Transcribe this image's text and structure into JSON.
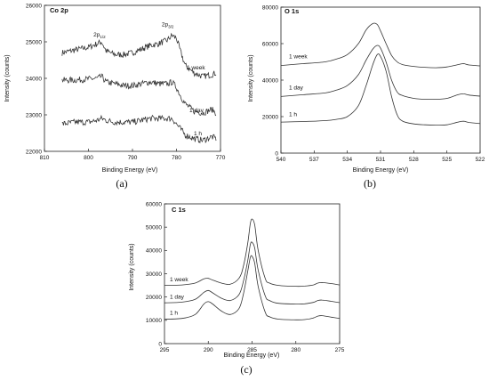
{
  "chart_data": [
    {
      "type": "line",
      "panel": "(a)",
      "title": "Co 2p",
      "xlabel": "Binding Energy (eV)",
      "ylabel": "Intensity (counts)",
      "xlim": [
        810,
        770
      ],
      "ylim": [
        22000,
        26000
      ],
      "xticks": [
        810,
        800,
        790,
        780,
        770
      ],
      "yticks": [
        22000,
        23000,
        24000,
        25000,
        26000
      ],
      "annotations": [
        {
          "text": "2p",
          "sub": "1/2",
          "x": 797.5,
          "y": 25150
        },
        {
          "text": "2p",
          "sub": "3/2",
          "x": 782,
          "y": 25430
        }
      ],
      "x": [
        806,
        803,
        800,
        798,
        797,
        796,
        794,
        792,
        790,
        788,
        786,
        784,
        782,
        781,
        780,
        779,
        778,
        776,
        774,
        772,
        771
      ],
      "series": [
        {
          "name": "1 week",
          "values": [
            24700,
            24780,
            24850,
            24950,
            25000,
            24750,
            24650,
            24650,
            24700,
            24800,
            24900,
            24950,
            25050,
            25180,
            25100,
            24700,
            24350,
            24150,
            24050,
            24100,
            24150
          ]
        },
        {
          "name": "1 day",
          "values": [
            23950,
            23950,
            23980,
            24000,
            24050,
            23900,
            23850,
            23800,
            23800,
            23850,
            23900,
            23850,
            23850,
            23900,
            23750,
            23500,
            23300,
            23100,
            23050,
            23150,
            23050
          ]
        },
        {
          "name": "1 h",
          "values": [
            22750,
            22800,
            22800,
            22850,
            22900,
            22850,
            22800,
            22800,
            22800,
            22850,
            22900,
            22900,
            22900,
            22900,
            22750,
            22600,
            22450,
            22350,
            22300,
            22400,
            22350
          ]
        }
      ]
    },
    {
      "type": "line",
      "panel": "(b)",
      "title": "O 1s",
      "xlabel": "Binding Energy (eV)",
      "ylabel": "Intensity (counts)",
      "xlim": [
        540,
        522
      ],
      "ylim": [
        0,
        80000
      ],
      "xticks": [
        540,
        537,
        534,
        531,
        528,
        525,
        522
      ],
      "yticks": [
        0,
        20000,
        40000,
        60000,
        80000
      ],
      "x": [
        540,
        538,
        536,
        535,
        534,
        533,
        532.3,
        531.7,
        531.3,
        531,
        530.5,
        530,
        529.5,
        529,
        528,
        527,
        526,
        525,
        524,
        523.5,
        523,
        522
      ],
      "series": [
        {
          "name": "1 week",
          "values": [
            48000,
            49000,
            50000,
            51500,
            54000,
            60000,
            67500,
            71000,
            70500,
            67000,
            60000,
            53500,
            50000,
            48500,
            47500,
            47000,
            46800,
            47200,
            48500,
            49000,
            48300,
            47800
          ]
        },
        {
          "name": "1 day",
          "values": [
            31000,
            32000,
            33000,
            34500,
            37000,
            43000,
            51000,
            57000,
            59000,
            57500,
            50000,
            40000,
            33500,
            31500,
            30000,
            29500,
            29500,
            30000,
            32000,
            32500,
            31800,
            31200
          ]
        },
        {
          "name": "1 h",
          "values": [
            17000,
            17300,
            17800,
            18500,
            20000,
            26000,
            37000,
            48500,
            54000,
            53000,
            45000,
            31000,
            21000,
            17500,
            16000,
            15500,
            15300,
            15500,
            17000,
            17500,
            16800,
            16200
          ]
        }
      ]
    },
    {
      "type": "line",
      "panel": "(c)",
      "title": "C 1s",
      "xlabel": "Binding Energy (eV)",
      "ylabel": "Intensity (counts)",
      "xlim": [
        295,
        275
      ],
      "ylim": [
        0,
        60000
      ],
      "xticks": [
        295,
        290,
        285,
        280,
        275
      ],
      "yticks": [
        0,
        10000,
        20000,
        30000,
        40000,
        50000,
        60000
      ],
      "x": [
        295,
        293,
        291.5,
        290.5,
        290,
        289.5,
        288.5,
        287.5,
        286.5,
        286,
        285.5,
        285.2,
        285,
        284.7,
        284.3,
        283.5,
        283,
        282,
        280,
        279,
        278,
        277.5,
        277,
        276,
        275
      ],
      "series": [
        {
          "name": "1 week",
          "values": [
            25000,
            25200,
            26000,
            27800,
            28000,
            27300,
            26000,
            25500,
            28000,
            33000,
            43000,
            51500,
            53500,
            51000,
            40000,
            28000,
            26000,
            25000,
            24600,
            24700,
            25200,
            26000,
            26200,
            25800,
            25200
          ]
        },
        {
          "name": "1 day",
          "values": [
            17500,
            17800,
            19000,
            22000,
            22800,
            21800,
            19500,
            18500,
            21000,
            26500,
            35500,
            42500,
            43500,
            41000,
            31500,
            20500,
            18500,
            17300,
            17000,
            17100,
            17700,
            18500,
            18700,
            18200,
            17600
          ]
        },
        {
          "name": "1 h",
          "values": [
            10500,
            10800,
            12500,
            17000,
            18000,
            17000,
            14000,
            12500,
            15000,
            21000,
            31000,
            37000,
            37500,
            34500,
            24500,
            13500,
            11500,
            10500,
            10200,
            10300,
            11000,
            11800,
            12000,
            11400,
            10800
          ]
        }
      ]
    }
  ]
}
